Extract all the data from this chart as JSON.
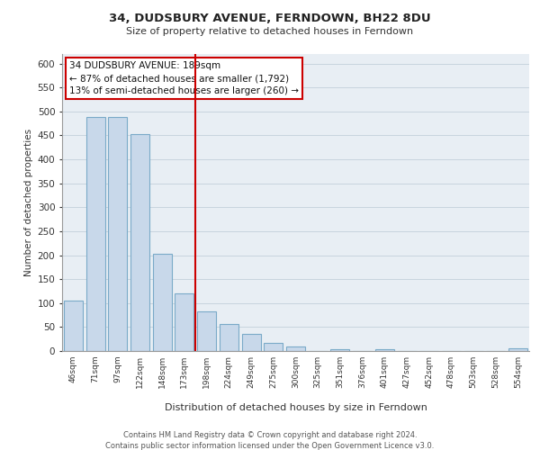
{
  "title": "34, DUDSBURY AVENUE, FERNDOWN, BH22 8DU",
  "subtitle": "Size of property relative to detached houses in Ferndown",
  "xlabel": "Distribution of detached houses by size in Ferndown",
  "ylabel": "Number of detached properties",
  "footer_line1": "Contains HM Land Registry data © Crown copyright and database right 2024.",
  "footer_line2": "Contains public sector information licensed under the Open Government Licence v3.0.",
  "annotation_title": "34 DUDSBURY AVENUE: 189sqm",
  "annotation_line1": "← 87% of detached houses are smaller (1,792)",
  "annotation_line2": "13% of semi-detached houses are larger (260) →",
  "bar_labels": [
    "46sqm",
    "71sqm",
    "97sqm",
    "122sqm",
    "148sqm",
    "173sqm",
    "198sqm",
    "224sqm",
    "249sqm",
    "275sqm",
    "300sqm",
    "325sqm",
    "351sqm",
    "376sqm",
    "401sqm",
    "427sqm",
    "452sqm",
    "478sqm",
    "503sqm",
    "528sqm",
    "554sqm"
  ],
  "bar_values": [
    106,
    488,
    488,
    453,
    202,
    121,
    82,
    57,
    36,
    16,
    9,
    0,
    3,
    0,
    4,
    0,
    0,
    0,
    0,
    0,
    5
  ],
  "bar_color": "#c8d8ea",
  "bar_edge_color": "#7aaac8",
  "vline_x_index": 6,
  "vline_color": "#cc0000",
  "ylim": [
    0,
    620
  ],
  "yticks": [
    0,
    50,
    100,
    150,
    200,
    250,
    300,
    350,
    400,
    450,
    500,
    550,
    600
  ],
  "grid_color": "#c8d4de",
  "background_color": "#e8eef4",
  "title_fontsize": 9.5,
  "subtitle_fontsize": 8,
  "ylabel_fontsize": 7.5,
  "xlabel_fontsize": 8,
  "ytick_fontsize": 7.5,
  "xtick_fontsize": 6.5,
  "annotation_fontsize": 7.5,
  "footer_fontsize": 6
}
